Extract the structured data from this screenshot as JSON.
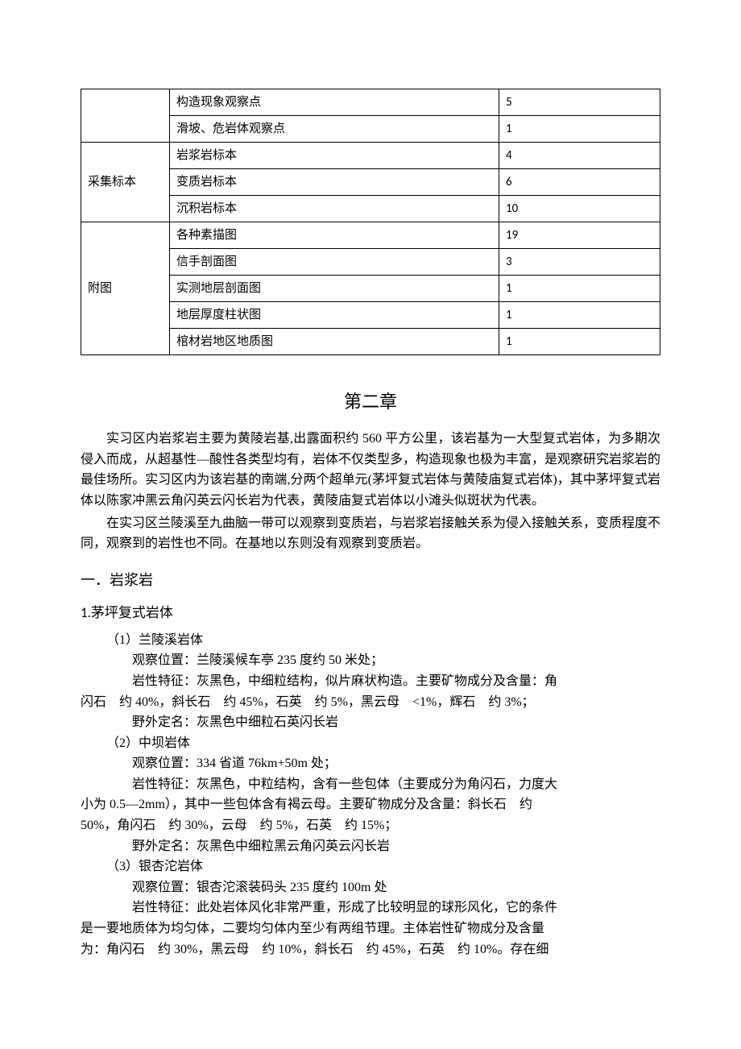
{
  "table": {
    "rows": [
      {
        "cat": "",
        "item": "构造现象观察点",
        "val": "5"
      },
      {
        "cat": "",
        "item": "滑坡、危岩体观察点",
        "val": "1"
      },
      {
        "cat": "采集标本",
        "item": "岩浆岩标本",
        "val": "4"
      },
      {
        "cat": "",
        "item": "变质岩标本",
        "val": "6"
      },
      {
        "cat": "",
        "item": "沉积岩标本",
        "val": "10"
      },
      {
        "cat": "附图",
        "item": "各种素描图",
        "val": "19"
      },
      {
        "cat": "",
        "item": "信手剖面图",
        "val": "3"
      },
      {
        "cat": "",
        "item": "实测地层剖面图",
        "val": "1"
      },
      {
        "cat": "",
        "item": "地层厚度柱状图",
        "val": "1"
      },
      {
        "cat": "",
        "item": "棺材岩地区地质图",
        "val": "1"
      }
    ],
    "span_group1": 2,
    "span_group2": 3,
    "span_group3": 5
  },
  "chapter_title": "第二章",
  "para1": "实习区内岩浆岩主要为黄陵岩基,出露面积约 560 平方公里，该岩基为一大型复式岩体，为多期次侵入而成，从超基性—酸性各类型均有，岩体不仅类型多，构造现象也极为丰富，是观察研究岩浆岩的最佳场所。实习区内为该岩基的南端,分两个超单元(茅坪复式岩体与黄陵庙复式岩体)，其中茅坪复式岩体以陈家冲黑云角闪英云闪长岩为代表，黄陵庙复式岩体以小滩头似斑状为代表。",
  "para2": "在实习区兰陵溪至九曲脑一带可以观察到变质岩，与岩浆岩接触关系为侵入接触关系，变质程度不同，观察到的岩性也不同。在基地以东则没有观察到变质岩。",
  "sec1_title": "一．岩浆岩",
  "sec1_1_title": "1.茅坪复式岩体",
  "rock1": {
    "name": "（1）兰陵溪岩体",
    "loc": "观察位置：兰陵溪候车亭 235 度约 50 米处；",
    "desc1": "岩性特征：灰黑色，中细粒结构，似片麻状构造。主要矿物成分及含量：角",
    "desc2": "闪石　约 40%，斜长石　约 45%，石英　约 5%，黑云母　<1%，辉石　约 3%；",
    "field": "野外定名：灰黑色中细粒石英闪长岩"
  },
  "rock2": {
    "name": "（2）中坝岩体",
    "loc": "观察位置：334 省道 76km+50m 处；",
    "desc1": "岩性特征：灰黑色，中粒结构，含有一些包体（主要成分为角闪石，力度大",
    "desc2": "小为 0.5—2mm），其中一些包体含有褐云母。主要矿物成分及含量：斜长石　约",
    "desc3": "50%，角闪石　约 30%，云母　约 5%，石英　约 15%；",
    "field": "野外定名：灰黑色中细粒黑云角闪英云闪长岩"
  },
  "rock3": {
    "name": "（3）银杏沱岩体",
    "loc": "观察位置：银杏沱滚装码头 235 度约 100m 处",
    "desc1": "岩性特征：此处岩体风化非常严重，形成了比较明显的球形风化，它的条件",
    "desc2": "是一要地质体为均匀体，二要均匀体内至少有两组节理。主体岩性矿物成分及含量",
    "desc3": "为：角闪石　约 30%，黑云母　约 10%，斜长石　约 45%，石英　约 10%。存在细"
  }
}
